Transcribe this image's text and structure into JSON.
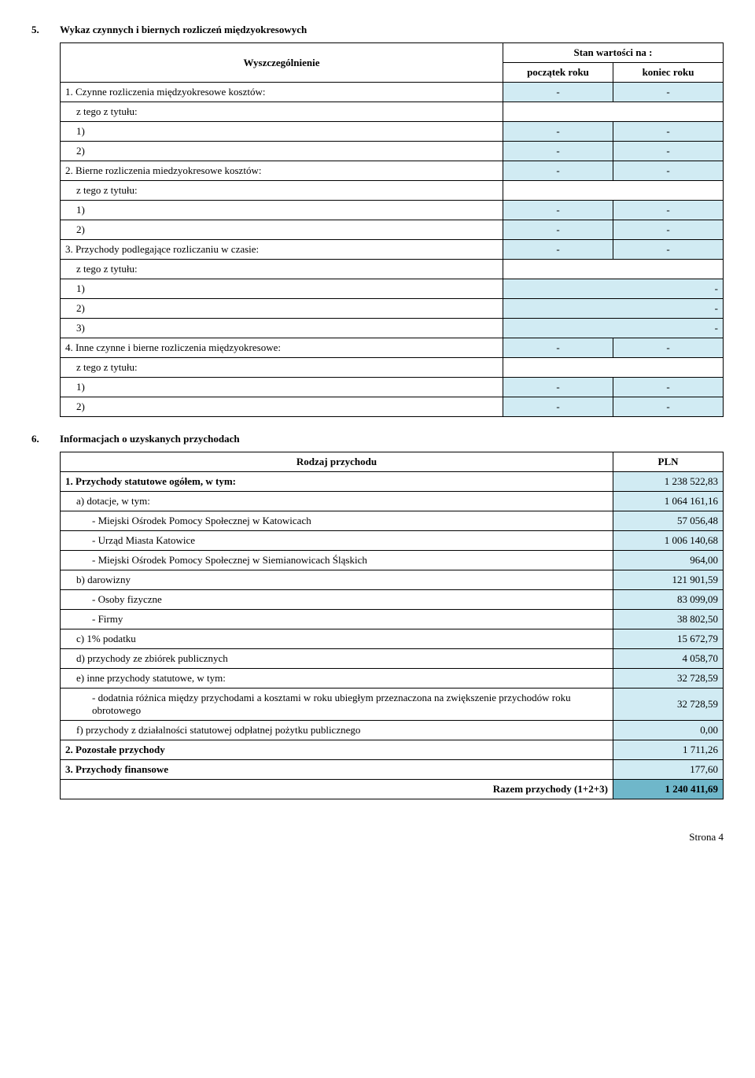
{
  "section5": {
    "num": "5.",
    "title": "Wykaz czynnych i biernych rozliczeń międzyokresowych",
    "colHeader": "Wyszczególnienie",
    "stanHeader": "Stan wartości na :",
    "col1": "początek roku",
    "col2": "koniec roku",
    "rows": [
      {
        "label": "1. Czynne rozliczenia międzyokresowe kosztów:",
        "v1": "-",
        "v2": "-",
        "cls": ""
      },
      {
        "label": "z tego z tytułu:",
        "v1": "",
        "v2": "",
        "cls": "sub1",
        "blank": true
      },
      {
        "label": "1)",
        "v1": "-",
        "v2": "-",
        "cls": "sub1 blankrow"
      },
      {
        "label": "2)",
        "v1": "-",
        "v2": "-",
        "cls": "sub1 blankrow"
      },
      {
        "label": "2. Bierne rozliczenia miedzyokresowe kosztów:",
        "v1": "-",
        "v2": "-",
        "cls": ""
      },
      {
        "label": "z tego z tytułu:",
        "v1": "",
        "v2": "",
        "cls": "sub1",
        "blank": true
      },
      {
        "label": "1)",
        "v1": "-",
        "v2": "-",
        "cls": "sub1 blankrow"
      },
      {
        "label": "2)",
        "v1": "-",
        "v2": "-",
        "cls": "sub1 blankrow"
      },
      {
        "label": "3. Przychody podlegające rozliczaniu w czasie:",
        "v1": "-",
        "v2": "-",
        "cls": ""
      },
      {
        "label": "z tego z tytułu:",
        "v1": "",
        "v2": "",
        "cls": "sub1",
        "blank": true
      },
      {
        "label": "1)",
        "v1": "",
        "v2": "-",
        "cls": "sub1 blankrow",
        "mono": true
      },
      {
        "label": "2)",
        "v1": "",
        "v2": "-",
        "cls": "sub1 blankrow",
        "mono": true
      },
      {
        "label": "3)",
        "v1": "",
        "v2": "-",
        "cls": "sub1 blankrow",
        "mono": true
      },
      {
        "label": "4. Inne czynne i bierne rozliczenia międzyokresowe:",
        "v1": "-",
        "v2": "-",
        "cls": ""
      },
      {
        "label": "z tego z tytułu:",
        "v1": "",
        "v2": "",
        "cls": "sub1",
        "blank": true
      },
      {
        "label": "1)",
        "v1": "-",
        "v2": "-",
        "cls": "sub1 blankrow"
      },
      {
        "label": "2)",
        "v1": "-",
        "v2": "-",
        "cls": "sub1 blankrow"
      }
    ]
  },
  "section6": {
    "num": "6.",
    "title": "Informacjach o uzyskanych przychodach",
    "colHeader": "Rodzaj przychodu",
    "colVal": "PLN",
    "rows": [
      {
        "label": "1. Przychody statutowe ogółem, w tym:",
        "val": "1 238 522,83",
        "cls": "bold"
      },
      {
        "label": "a) dotacje, w tym:",
        "val": "1 064 161,16",
        "cls": "sub1"
      },
      {
        "label": " - Miejski Ośrodek Pomocy Społecznej w Katowicach",
        "val": "57 056,48",
        "cls": "sub2"
      },
      {
        "label": " - Urząd Miasta Katowice",
        "val": "1 006 140,68",
        "cls": "sub2"
      },
      {
        "label": " - Miejski Ośrodek Pomocy Społecznej w Siemianowicach Śląskich",
        "val": "964,00",
        "cls": "sub2"
      },
      {
        "label": "b) darowizny",
        "val": "121 901,59",
        "cls": "sub1"
      },
      {
        "label": " - Osoby fizyczne",
        "val": "83 099,09",
        "cls": "sub2"
      },
      {
        "label": " - Firmy",
        "val": "38 802,50",
        "cls": "sub2"
      },
      {
        "label": "c) 1% podatku",
        "val": "15 672,79",
        "cls": "sub1"
      },
      {
        "label": "d) przychody ze zbiórek publicznych",
        "val": "4 058,70",
        "cls": "sub1"
      },
      {
        "label": "e) inne przychody statutowe, w tym:",
        "val": "32 728,59",
        "cls": "sub1"
      },
      {
        "label": " - dodatnia różnica między przychodami a kosztami w roku ubiegłym przeznaczona na zwiększenie przychodów roku obrotowego",
        "val": "32 728,59",
        "cls": "sub2"
      },
      {
        "label": "f) przychody z działalności statutowej odpłatnej pożytku publicznego",
        "val": "0,00",
        "cls": "sub1"
      },
      {
        "label": "2. Pozostałe przychody",
        "val": "1 711,26",
        "cls": "bold"
      },
      {
        "label": "3. Przychody finansowe",
        "val": "177,60",
        "cls": "bold"
      }
    ],
    "sumLabel": "Razem przychody (1+2+3)",
    "sumVal": "1 240 411,69"
  },
  "footer": "Strona 4"
}
